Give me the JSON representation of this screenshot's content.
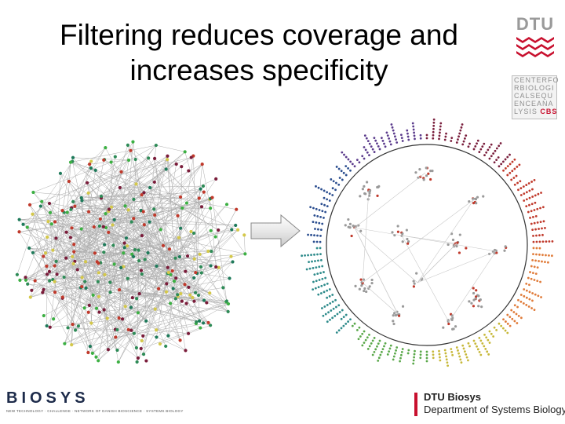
{
  "slide": {
    "title_line1": "Filtering reduces coverage and",
    "title_line2": "increases specificity"
  },
  "dtu_logo": {
    "text": "DTU",
    "color": "#c8102e",
    "cbs_lines": [
      "CENTERFO",
      "RBIOLOGI",
      "CALSEQU",
      "ENCEANA"
    ],
    "cbs_last_prefix": "LYSIS",
    "cbs_last_bold": "CBS"
  },
  "left_network": {
    "icon": "dense-network-graph",
    "node_colors": [
      "#2e8b57",
      "#3cb043",
      "#d4c84a",
      "#c0392b",
      "#7a1c3a",
      "#1e7a5a"
    ]
  },
  "arrow": {
    "icon": "right-arrow"
  },
  "right_network": {
    "icon": "circular-network-graph",
    "ring_colors": [
      "#7a1f3d",
      "#c0392b",
      "#e07b39",
      "#c7b83a",
      "#5aa84a",
      "#2e8b8b",
      "#2a4d8f",
      "#5b3b8c"
    ]
  },
  "footer": {
    "biosys_logo_word": "BIOSYS",
    "biosys_tagline": "NEW TECHNOLOGY · CHALLENGE · NETWORK OF DANISH BIOSCIENCE · SYSTEMS BIOLOGY",
    "dtu_biosys_name": "DTU Biosys",
    "dtu_biosys_dept": "Department of Systems Biology"
  }
}
